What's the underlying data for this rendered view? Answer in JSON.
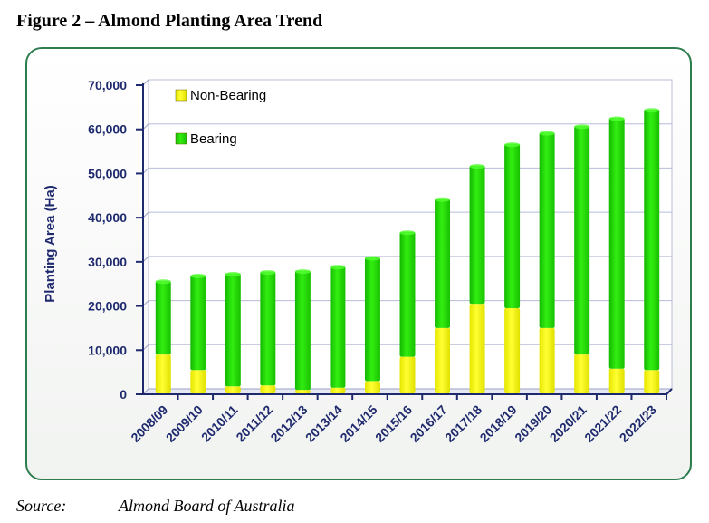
{
  "figure_title": "Figure 2 – Almond Planting Area Trend",
  "source": {
    "label": "Source:",
    "text": "Almond Board of Australia"
  },
  "colors": {
    "bearing": "#22dd00",
    "non_bearing": "#ffff00",
    "axis": "#1f2a6e",
    "frame": "#2e7d4f"
  },
  "chart_data": {
    "type": "bar",
    "stacked": true,
    "title": "",
    "xlabel": "",
    "ylabel": "Planting Area (Ha)",
    "ylim": [
      0,
      70000
    ],
    "yticks": [
      0,
      10000,
      20000,
      30000,
      40000,
      50000,
      60000,
      70000
    ],
    "ytick_labels": [
      "0",
      "10,000",
      "20,000",
      "30,000",
      "40,000",
      "50,000",
      "60,000",
      "70,000"
    ],
    "grid": true,
    "legend_position": "top-left",
    "categories": [
      "2008/09",
      "2009/10",
      "2010/11",
      "2011/12",
      "2012/13",
      "2013/14",
      "2014/15",
      "2015/16",
      "2016/17",
      "2017/18",
      "2018/19",
      "2019/20",
      "2020/21",
      "2021/22",
      "2022/23"
    ],
    "series": [
      {
        "name": "Non-Bearing",
        "color": "#ffff00",
        "values": [
          9000,
          5500,
          1800,
          2000,
          1000,
          1500,
          3000,
          8500,
          15000,
          20500,
          19500,
          15000,
          9000,
          5800,
          5500
        ]
      },
      {
        "name": "Bearing",
        "color": "#22dd00",
        "values": [
          16700,
          21500,
          25600,
          25800,
          27000,
          27500,
          28000,
          28300,
          29300,
          31300,
          37200,
          44300,
          51800,
          56800,
          59000
        ]
      }
    ]
  }
}
